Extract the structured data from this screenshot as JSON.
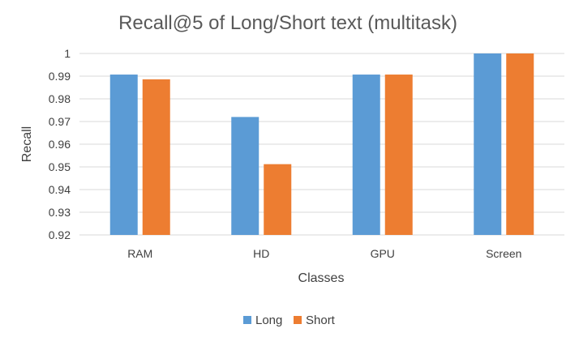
{
  "chart_data": {
    "type": "bar",
    "title": "Recall@5 of Long/Short text (multitask)",
    "xlabel": "Classes",
    "ylabel": "Recall",
    "categories": [
      "RAM",
      "HD",
      "GPU",
      "Screen"
    ],
    "ylim": [
      0.92,
      1.0
    ],
    "yticks": [
      0.92,
      0.93,
      0.94,
      0.95,
      0.96,
      0.97,
      0.98,
      0.99,
      1
    ],
    "ytick_labels": [
      "0.92",
      "0.93",
      "0.94",
      "0.95",
      "0.96",
      "0.97",
      "0.98",
      "0.99",
      "1"
    ],
    "grid": true,
    "legend_position": "bottom",
    "series": [
      {
        "name": "Long",
        "color": "#5b9bd5",
        "values": [
          0.9907,
          0.972,
          0.9907,
          1.0
        ]
      },
      {
        "name": "Short",
        "color": "#ed7d31",
        "values": [
          0.9886,
          0.9512,
          0.9907,
          1.0
        ]
      }
    ]
  }
}
